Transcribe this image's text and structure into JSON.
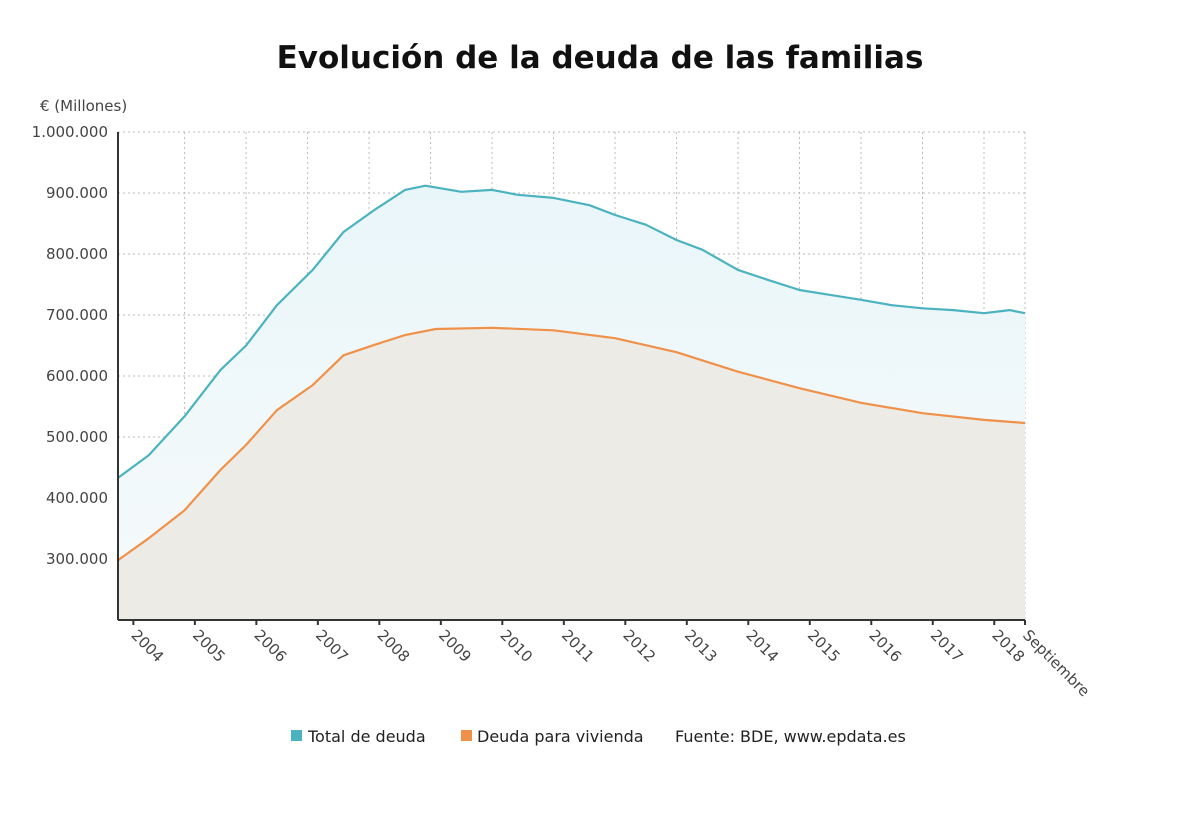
{
  "chart_data": {
    "type": "area",
    "title": "Evolución de la deuda de las familias",
    "ylabel": "€ (Millones)",
    "ylim": [
      200000,
      1000000
    ],
    "yticks": [
      300000,
      400000,
      500000,
      600000,
      700000,
      800000,
      900000,
      1000000
    ],
    "ytick_labels": [
      "300.000",
      "400.000",
      "500.000",
      "600.000",
      "700.000",
      "800.000",
      "900.000",
      "1.000.000"
    ],
    "xlim": [
      "2003-12",
      "2018-09"
    ],
    "xtick_labels": [
      "2004",
      "2005",
      "2006",
      "2007",
      "2008",
      "2009",
      "2010",
      "2011",
      "2012",
      "2013",
      "2014",
      "2015",
      "2016",
      "2017",
      "2018",
      "Septiembre"
    ],
    "grid": true,
    "legend_position": "bottom",
    "source": "Fuente: BDE, www.epdata.es",
    "series": [
      {
        "name": "Total de deuda",
        "color": "#4bb3bf",
        "x": [
          "2003-12",
          "2004-06",
          "2005-01",
          "2005-08",
          "2006-01",
          "2006-07",
          "2007-02",
          "2007-08",
          "2008-02",
          "2008-08",
          "2008-12",
          "2009-07",
          "2010-01",
          "2010-06",
          "2011-01",
          "2011-08",
          "2012-01",
          "2012-07",
          "2013-01",
          "2013-06",
          "2014-01",
          "2014-07",
          "2015-01",
          "2015-07",
          "2016-01",
          "2016-07",
          "2017-01",
          "2017-07",
          "2018-01",
          "2018-06",
          "2018-09"
        ],
        "y": [
          433000,
          470000,
          534000,
          610000,
          650000,
          716000,
          774000,
          836000,
          872000,
          905000,
          912000,
          902000,
          905000,
          897000,
          892000,
          880000,
          864000,
          848000,
          823000,
          807000,
          774000,
          757000,
          741000,
          733000,
          725000,
          716000,
          711000,
          708000,
          703000,
          708000,
          703000
        ]
      },
      {
        "name": "Deuda para vivienda",
        "color": "#f0914a",
        "x": [
          "2003-12",
          "2004-06",
          "2005-01",
          "2005-08",
          "2006-01",
          "2006-07",
          "2007-02",
          "2007-08",
          "2008-02",
          "2008-08",
          "2009-02",
          "2010-01",
          "2011-01",
          "2012-01",
          "2013-01",
          "2014-01",
          "2015-01",
          "2016-01",
          "2017-01",
          "2018-01",
          "2018-09"
        ],
        "y": [
          298000,
          334000,
          380000,
          446000,
          487000,
          544000,
          585000,
          634000,
          651000,
          667000,
          677000,
          679000,
          675000,
          662000,
          639000,
          607000,
          580000,
          556000,
          539000,
          528000,
          523000
        ]
      }
    ]
  }
}
